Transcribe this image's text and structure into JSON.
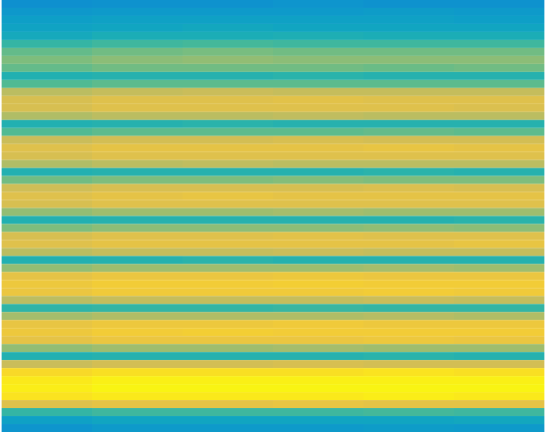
{
  "chart_data": {
    "type": "heatmap",
    "tick_labels": false,
    "zlim": [
      0,
      1
    ],
    "cells": [
      [
        0.29,
        0.3,
        0.3,
        0.31,
        0.3,
        0.3
      ],
      [
        0.32,
        0.33,
        0.33,
        0.33,
        0.34,
        0.33
      ],
      [
        0.35,
        0.36,
        0.36,
        0.36,
        0.36,
        0.35
      ],
      [
        0.37,
        0.38,
        0.39,
        0.38,
        0.38,
        0.38
      ],
      [
        0.4,
        0.42,
        0.42,
        0.43,
        0.42,
        0.42
      ],
      [
        0.48,
        0.5,
        0.51,
        0.5,
        0.5,
        0.5
      ],
      [
        0.56,
        0.58,
        0.59,
        0.58,
        0.58,
        0.58
      ],
      [
        0.6,
        0.62,
        0.63,
        0.62,
        0.62,
        0.62
      ],
      [
        0.56,
        0.58,
        0.58,
        0.58,
        0.57,
        0.58
      ],
      [
        0.44,
        0.45,
        0.45,
        0.46,
        0.45,
        0.45
      ],
      [
        0.53,
        0.55,
        0.55,
        0.55,
        0.55,
        0.55
      ],
      [
        0.7,
        0.72,
        0.73,
        0.72,
        0.72,
        0.72
      ],
      [
        0.76,
        0.78,
        0.78,
        0.79,
        0.78,
        0.78
      ],
      [
        0.76,
        0.78,
        0.78,
        0.78,
        0.78,
        0.77
      ],
      [
        0.68,
        0.7,
        0.7,
        0.71,
        0.7,
        0.7
      ],
      [
        0.44,
        0.45,
        0.46,
        0.45,
        0.45,
        0.45
      ],
      [
        0.53,
        0.55,
        0.55,
        0.55,
        0.56,
        0.55
      ],
      [
        0.73,
        0.75,
        0.75,
        0.76,
        0.75,
        0.75
      ],
      [
        0.78,
        0.8,
        0.8,
        0.8,
        0.81,
        0.8
      ],
      [
        0.76,
        0.78,
        0.78,
        0.78,
        0.78,
        0.78
      ],
      [
        0.68,
        0.7,
        0.71,
        0.7,
        0.7,
        0.7
      ],
      [
        0.44,
        0.45,
        0.45,
        0.45,
        0.46,
        0.45
      ],
      [
        0.58,
        0.6,
        0.6,
        0.61,
        0.6,
        0.6
      ],
      [
        0.74,
        0.76,
        0.76,
        0.76,
        0.77,
        0.76
      ],
      [
        0.78,
        0.8,
        0.81,
        0.8,
        0.8,
        0.8
      ],
      [
        0.76,
        0.78,
        0.78,
        0.78,
        0.78,
        0.78
      ],
      [
        0.63,
        0.65,
        0.65,
        0.66,
        0.65,
        0.65
      ],
      [
        0.44,
        0.45,
        0.45,
        0.45,
        0.45,
        0.46
      ],
      [
        0.6,
        0.62,
        0.62,
        0.62,
        0.63,
        0.62
      ],
      [
        0.76,
        0.78,
        0.78,
        0.79,
        0.78,
        0.78
      ],
      [
        0.78,
        0.8,
        0.8,
        0.8,
        0.8,
        0.81
      ],
      [
        0.7,
        0.72,
        0.72,
        0.73,
        0.72,
        0.72
      ],
      [
        0.44,
        0.45,
        0.46,
        0.45,
        0.45,
        0.45
      ],
      [
        0.63,
        0.65,
        0.65,
        0.65,
        0.66,
        0.65
      ],
      [
        0.8,
        0.82,
        0.82,
        0.83,
        0.82,
        0.82
      ],
      [
        0.83,
        0.85,
        0.85,
        0.86,
        0.85,
        0.85
      ],
      [
        0.82,
        0.84,
        0.84,
        0.84,
        0.85,
        0.84
      ],
      [
        0.7,
        0.72,
        0.72,
        0.72,
        0.73,
        0.72
      ],
      [
        0.47,
        0.48,
        0.48,
        0.49,
        0.48,
        0.48
      ],
      [
        0.66,
        0.68,
        0.68,
        0.68,
        0.69,
        0.68
      ],
      [
        0.81,
        0.83,
        0.83,
        0.84,
        0.83,
        0.83
      ],
      [
        0.83,
        0.85,
        0.86,
        0.85,
        0.85,
        0.85
      ],
      [
        0.8,
        0.82,
        0.82,
        0.82,
        0.83,
        0.82
      ],
      [
        0.63,
        0.65,
        0.65,
        0.66,
        0.65,
        0.65
      ],
      [
        0.44,
        0.45,
        0.45,
        0.45,
        0.46,
        0.45
      ],
      [
        0.73,
        0.75,
        0.75,
        0.76,
        0.75,
        0.75
      ],
      [
        0.9,
        0.92,
        0.92,
        0.92,
        0.93,
        0.92
      ],
      [
        0.95,
        0.97,
        0.97,
        0.97,
        0.97,
        0.97
      ],
      [
        0.96,
        0.98,
        0.98,
        0.98,
        0.98,
        0.98
      ],
      [
        0.93,
        0.95,
        0.95,
        0.95,
        0.96,
        0.95
      ],
      [
        0.78,
        0.8,
        0.8,
        0.81,
        0.8,
        0.8
      ],
      [
        0.48,
        0.5,
        0.5,
        0.5,
        0.51,
        0.5
      ],
      [
        0.36,
        0.38,
        0.38,
        0.38,
        0.38,
        0.39
      ],
      [
        0.31,
        0.33,
        0.33,
        0.33,
        0.34,
        0.33
      ]
    ]
  }
}
